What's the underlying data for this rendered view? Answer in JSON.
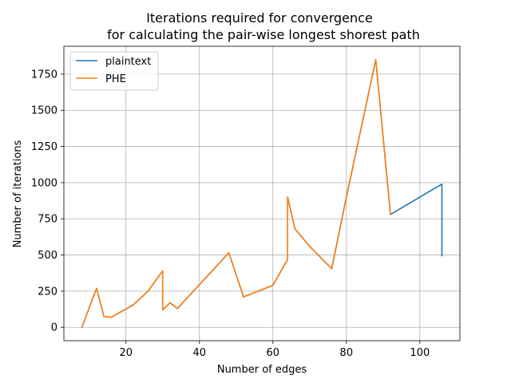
{
  "chart_data": {
    "type": "line",
    "title": [
      "Iterations required for convergence",
      "for calculating the pair-wise longest shorest path"
    ],
    "xlabel": "Number of edges",
    "ylabel": "Number of iterations",
    "xlim": [
      3.1,
      110.9
    ],
    "ylim": [
      -92.5,
      1942.5
    ],
    "xticks": [
      20,
      40,
      60,
      80,
      100
    ],
    "yticks": [
      0,
      250,
      500,
      750,
      1000,
      1250,
      1500,
      1750
    ],
    "grid": true,
    "legend_position": "top-left",
    "series": [
      {
        "name": "plaintext",
        "color": "#1f77b4",
        "x": [
          8,
          12,
          14,
          16,
          22,
          26,
          30,
          30,
          32,
          34,
          48,
          52,
          60,
          64,
          64,
          66,
          70,
          76,
          80,
          88,
          92,
          106,
          106
        ],
        "y": [
          0,
          270,
          75,
          70,
          155,
          250,
          390,
          120,
          170,
          130,
          515,
          210,
          290,
          470,
          900,
          680,
          560,
          405,
          900,
          1850,
          780,
          990,
          495
        ]
      },
      {
        "name": "PHE",
        "color": "#ff7f0e",
        "x": [
          8,
          12,
          14,
          16,
          22,
          26,
          30,
          30,
          32,
          34,
          48,
          52,
          60,
          64,
          64,
          66,
          70,
          76,
          80,
          88,
          92
        ],
        "y": [
          0,
          270,
          75,
          70,
          155,
          250,
          390,
          120,
          170,
          130,
          515,
          210,
          290,
          470,
          900,
          680,
          560,
          405,
          900,
          1850,
          780
        ]
      }
    ]
  }
}
